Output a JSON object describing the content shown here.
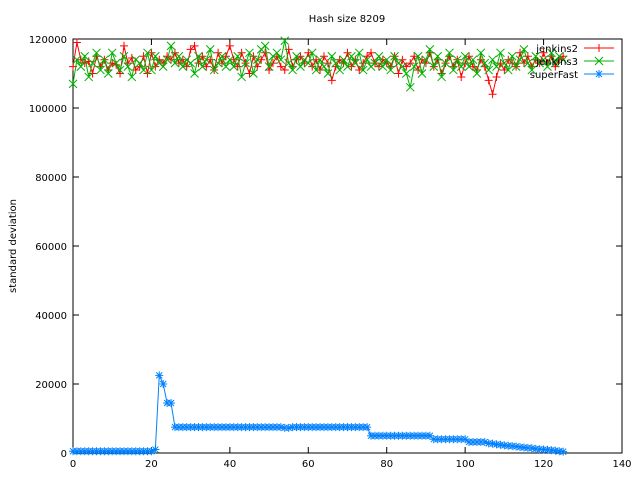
{
  "chart_data": {
    "type": "line",
    "title": "Hash size 8209",
    "y_label": "standard deviation",
    "x": [
      0,
      1,
      2,
      3,
      4,
      5,
      6,
      7,
      8,
      9,
      10,
      11,
      12,
      13,
      14,
      15,
      16,
      17,
      18,
      19,
      20,
      21,
      22,
      23,
      24,
      25,
      26,
      27,
      28,
      29,
      30,
      31,
      32,
      33,
      34,
      35,
      36,
      37,
      38,
      39,
      40,
      41,
      42,
      43,
      44,
      45,
      46,
      47,
      48,
      49,
      50,
      51,
      52,
      53,
      54,
      55,
      56,
      57,
      58,
      59,
      60,
      61,
      62,
      63,
      64,
      65,
      66,
      67,
      68,
      69,
      70,
      71,
      72,
      73,
      74,
      75,
      76,
      77,
      78,
      79,
      80,
      81,
      82,
      83,
      84,
      85,
      86,
      87,
      88,
      89,
      90,
      91,
      92,
      93,
      94,
      95,
      96,
      97,
      98,
      99,
      100,
      101,
      102,
      103,
      104,
      105,
      106,
      107,
      108,
      109,
      110,
      111,
      112,
      113,
      114,
      115,
      116,
      117,
      118,
      119,
      120,
      121,
      122,
      123,
      124,
      125
    ],
    "series": [
      {
        "name": "jenkins2",
        "color": "#ff0000",
        "marker": "plus",
        "values": [
          112000,
          119000,
          114000,
          113000,
          113500,
          110000,
          115000,
          112000,
          114000,
          111000,
          113000,
          112500,
          110000,
          118000,
          113000,
          114500,
          111000,
          112000,
          115000,
          110000,
          116000,
          112000,
          114000,
          113000,
          115000,
          114000,
          116000,
          113000,
          114000,
          112000,
          117000,
          118000,
          113000,
          115000,
          112000,
          114000,
          111000,
          116000,
          113000,
          115000,
          118000,
          114000,
          112000,
          116000,
          113000,
          110000,
          115000,
          112000,
          114000,
          116000,
          111000,
          113000,
          115000,
          112000,
          111000,
          117000,
          112000,
          114000,
          115000,
          113000,
          116000,
          112000,
          114000,
          111000,
          115000,
          113000,
          108000,
          112000,
          114000,
          113000,
          116000,
          112000,
          114000,
          111000,
          113000,
          115000,
          116000,
          113000,
          112000,
          114000,
          113000,
          112000,
          115000,
          110000,
          114000,
          112000,
          113000,
          115000,
          111000,
          114000,
          113000,
          116000,
          112000,
          114000,
          110000,
          113000,
          115000,
          112000,
          114000,
          109000,
          113000,
          115000,
          112000,
          111000,
          114000,
          112000,
          108000,
          104000,
          109000,
          113000,
          111000,
          114000,
          113000,
          112000,
          116000,
          113000,
          115000,
          112000,
          114000,
          113000,
          116000,
          113000,
          115000,
          112000,
          114000,
          115000
        ]
      },
      {
        "name": "jenkins3",
        "color": "#00b000",
        "marker": "cross",
        "values": [
          107000,
          114000,
          112000,
          115000,
          109000,
          113000,
          116000,
          111000,
          114000,
          110000,
          116000,
          113000,
          111000,
          115000,
          112000,
          109000,
          114000,
          113000,
          111000,
          116000,
          111000,
          115000,
          113000,
          112000,
          114000,
          118000,
          113000,
          115000,
          112000,
          114000,
          113000,
          110000,
          115000,
          112000,
          114000,
          117000,
          111000,
          113000,
          115000,
          112000,
          114000,
          112000,
          115000,
          109000,
          113000,
          116000,
          110000,
          114000,
          117000,
          118000,
          112000,
          115000,
          116000,
          114000,
          119500,
          113000,
          111000,
          115000,
          112000,
          114000,
          113000,
          116000,
          111000,
          114000,
          112000,
          110000,
          115000,
          113000,
          111000,
          114000,
          112000,
          115000,
          113000,
          116000,
          111000,
          114000,
          112000,
          113000,
          115000,
          112000,
          114000,
          111000,
          115000,
          113000,
          112000,
          110000,
          106000,
          112000,
          115000,
          110000,
          114000,
          117000,
          112000,
          115000,
          109000,
          113000,
          116000,
          111000,
          114000,
          112000,
          115000,
          112000,
          114000,
          110000,
          116000,
          113000,
          111000,
          114000,
          112000,
          116000,
          113000,
          111000,
          115000,
          112000,
          114000,
          117000,
          113000,
          111000,
          115000,
          113000,
          114000,
          112000,
          116000,
          113000,
          115000,
          114000
        ]
      },
      {
        "name": "superFast",
        "color": "#0080ff",
        "marker": "star",
        "values": [
          500,
          500,
          500,
          500,
          500,
          500,
          500,
          500,
          500,
          500,
          500,
          500,
          500,
          500,
          500,
          500,
          500,
          500,
          500,
          500,
          500,
          1000,
          22500,
          20000,
          14500,
          14500,
          7500,
          7500,
          7500,
          7500,
          7500,
          7500,
          7500,
          7500,
          7500,
          7500,
          7500,
          7500,
          7500,
          7500,
          7500,
          7500,
          7500,
          7500,
          7500,
          7500,
          7500,
          7500,
          7500,
          7500,
          7500,
          7500,
          7500,
          7500,
          7300,
          7300,
          7500,
          7500,
          7500,
          7500,
          7500,
          7500,
          7500,
          7500,
          7500,
          7500,
          7500,
          7500,
          7500,
          7500,
          7500,
          7500,
          7500,
          7500,
          7500,
          7500,
          5000,
          5000,
          5000,
          5000,
          5000,
          5000,
          5000,
          5000,
          5000,
          5000,
          5000,
          5000,
          5000,
          5000,
          5000,
          5000,
          4000,
          4000,
          4000,
          4000,
          4000,
          4000,
          4000,
          4000,
          4000,
          3200,
          3200,
          3200,
          3200,
          3200,
          2800,
          2700,
          2500,
          2400,
          2200,
          2100,
          2000,
          1900,
          1700,
          1600,
          1500,
          1400,
          1200,
          1100,
          1000,
          900,
          800,
          700,
          500,
          400
        ]
      }
    ],
    "xlim": [
      0,
      140
    ],
    "xticks": [
      0,
      20,
      40,
      60,
      80,
      100,
      120,
      140
    ],
    "ylim": [
      0,
      120000
    ],
    "yticks": [
      0,
      20000,
      40000,
      60000,
      80000,
      100000,
      120000
    ],
    "legend": "top-right"
  }
}
